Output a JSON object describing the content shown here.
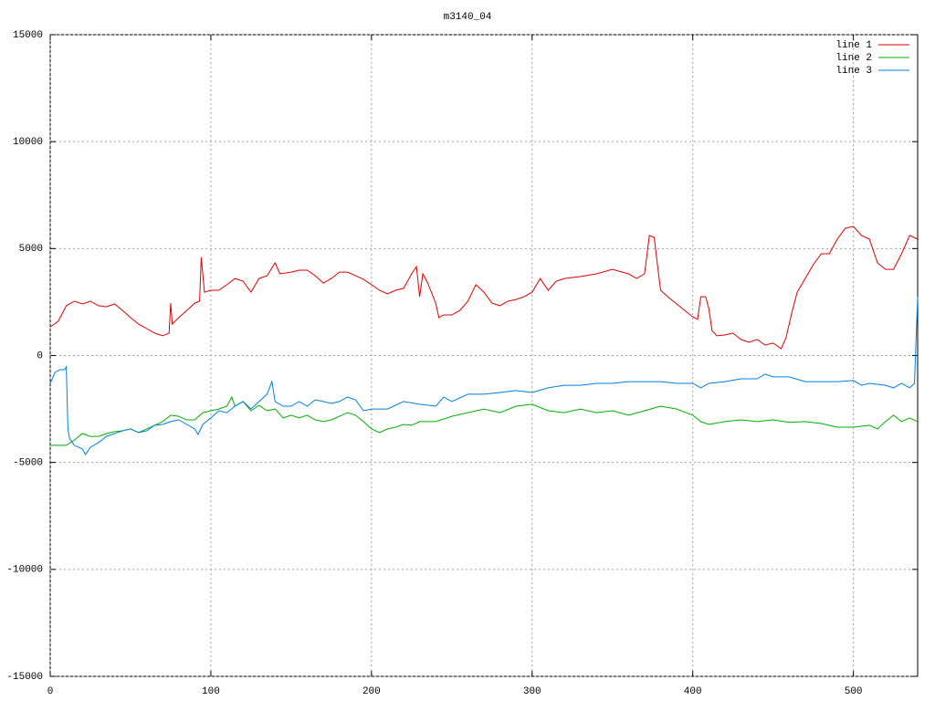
{
  "chart_data": {
    "type": "line",
    "title": "m3140_04",
    "xlim": [
      0,
      540
    ],
    "ylim": [
      -15000,
      15000
    ],
    "xticks": [
      0,
      100,
      200,
      300,
      400,
      500
    ],
    "yticks": [
      -15000,
      -10000,
      -5000,
      0,
      5000,
      10000,
      15000
    ],
    "grid": true,
    "legend": "top-right",
    "series": [
      {
        "name": "line 1",
        "color": "#e00000",
        "x": [
          0,
          5,
          10,
          15,
          20,
          25,
          30,
          35,
          40,
          45,
          50,
          55,
          60,
          65,
          70,
          74,
          75,
          76,
          80,
          85,
          90,
          93,
          94,
          96,
          100,
          105,
          110,
          115,
          120,
          125,
          130,
          135,
          140,
          143,
          150,
          155,
          160,
          165,
          170,
          175,
          180,
          185,
          190,
          195,
          200,
          205,
          210,
          215,
          220,
          225,
          228,
          230,
          232,
          235,
          240,
          242,
          245,
          250,
          255,
          260,
          265,
          270,
          275,
          280,
          285,
          290,
          295,
          300,
          305,
          310,
          315,
          320,
          330,
          340,
          350,
          360,
          365,
          370,
          373,
          376,
          378,
          380,
          385,
          390,
          395,
          400,
          403,
          405,
          408,
          410,
          412,
          415,
          420,
          425,
          430,
          435,
          440,
          445,
          450,
          455,
          458,
          462,
          465,
          470,
          475,
          480,
          485,
          490,
          495,
          500,
          505,
          510,
          515,
          520,
          525,
          530,
          535,
          540
        ],
        "values": [
          1340,
          1600,
          2330,
          2540,
          2410,
          2540,
          2330,
          2280,
          2410,
          2110,
          1770,
          1470,
          1260,
          1050,
          920,
          1050,
          2450,
          1470,
          1770,
          2110,
          2450,
          2540,
          4590,
          2960,
          3050,
          3050,
          3310,
          3600,
          3480,
          2960,
          3600,
          3730,
          4330,
          3820,
          3900,
          3990,
          3990,
          3730,
          3390,
          3600,
          3900,
          3900,
          3730,
          3560,
          3310,
          3050,
          2880,
          3050,
          3140,
          3820,
          4160,
          2750,
          3820,
          3390,
          2450,
          1770,
          1900,
          1900,
          2110,
          2540,
          3310,
          2960,
          2450,
          2330,
          2540,
          2620,
          2750,
          2960,
          3600,
          3050,
          3480,
          3600,
          3690,
          3820,
          4030,
          3820,
          3600,
          3820,
          5610,
          5520,
          4240,
          3050,
          2710,
          2410,
          2110,
          1810,
          1690,
          2750,
          2750,
          2200,
          1170,
          920,
          960,
          1050,
          750,
          620,
          750,
          490,
          580,
          320,
          810,
          2110,
          2960,
          3600,
          4240,
          4760,
          4760,
          5440,
          5950,
          6040,
          5610,
          5440,
          4330,
          4030,
          4030,
          4760,
          5610,
          5440
        ]
      },
      {
        "name": "line 2",
        "color": "#00b000",
        "x": [
          0,
          5,
          10,
          15,
          20,
          25,
          30,
          35,
          40,
          45,
          50,
          55,
          60,
          65,
          70,
          75,
          80,
          85,
          90,
          95,
          100,
          105,
          110,
          113,
          115,
          120,
          125,
          130,
          135,
          140,
          145,
          150,
          155,
          160,
          165,
          170,
          175,
          180,
          185,
          190,
          195,
          200,
          205,
          210,
          215,
          220,
          225,
          230,
          240,
          250,
          260,
          270,
          280,
          290,
          300,
          310,
          320,
          330,
          340,
          350,
          360,
          370,
          380,
          390,
          400,
          405,
          410,
          420,
          430,
          440,
          450,
          460,
          470,
          480,
          490,
          500,
          510,
          515,
          520,
          525,
          530,
          535,
          540
        ],
        "values": [
          -4200,
          -4200,
          -4200,
          -3950,
          -3650,
          -3780,
          -3780,
          -3650,
          -3560,
          -3520,
          -3430,
          -3600,
          -3430,
          -3260,
          -3090,
          -2790,
          -2840,
          -3010,
          -3010,
          -2670,
          -2580,
          -2500,
          -2370,
          -1940,
          -2370,
          -2150,
          -2580,
          -2330,
          -2580,
          -2500,
          -2920,
          -2790,
          -2920,
          -2790,
          -3010,
          -3090,
          -3010,
          -2840,
          -2670,
          -2790,
          -3090,
          -3430,
          -3600,
          -3430,
          -3350,
          -3220,
          -3260,
          -3090,
          -3090,
          -2840,
          -2670,
          -2500,
          -2670,
          -2370,
          -2280,
          -2580,
          -2670,
          -2500,
          -2670,
          -2580,
          -2790,
          -2580,
          -2370,
          -2500,
          -2790,
          -3090,
          -3220,
          -3090,
          -3010,
          -3090,
          -3010,
          -3130,
          -3090,
          -3180,
          -3350,
          -3350,
          -3260,
          -3430,
          -3090,
          -2790,
          -3090,
          -2920,
          -3090
        ]
      },
      {
        "name": "line 3",
        "color": "#0080e0",
        "x": [
          0,
          3,
          6,
          9,
          10,
          11,
          12,
          15,
          20,
          22,
          25,
          30,
          35,
          40,
          45,
          50,
          55,
          60,
          65,
          70,
          75,
          80,
          85,
          90,
          92,
          95,
          100,
          105,
          110,
          115,
          120,
          125,
          130,
          135,
          138,
          140,
          145,
          150,
          155,
          160,
          165,
          170,
          175,
          180,
          185,
          190,
          195,
          200,
          210,
          220,
          230,
          240,
          245,
          250,
          260,
          270,
          280,
          290,
          300,
          310,
          320,
          330,
          340,
          350,
          360,
          370,
          380,
          390,
          400,
          405,
          410,
          420,
          430,
          440,
          445,
          450,
          460,
          470,
          480,
          490,
          500,
          505,
          510,
          520,
          525,
          530,
          535,
          538,
          540
        ],
        "values": [
          -1300,
          -790,
          -660,
          -660,
          -530,
          -3430,
          -3860,
          -4200,
          -4370,
          -4630,
          -4290,
          -4070,
          -3780,
          -3650,
          -3520,
          -3430,
          -3600,
          -3520,
          -3260,
          -3220,
          -3090,
          -3010,
          -3220,
          -3430,
          -3690,
          -3220,
          -2920,
          -2580,
          -2670,
          -2370,
          -2150,
          -2500,
          -2150,
          -1810,
          -1220,
          -2150,
          -2370,
          -2370,
          -2150,
          -2370,
          -2070,
          -2150,
          -2240,
          -2150,
          -1940,
          -2070,
          -2580,
          -2500,
          -2500,
          -2150,
          -2280,
          -2370,
          -1940,
          -2150,
          -1810,
          -1810,
          -1730,
          -1640,
          -1730,
          -1510,
          -1390,
          -1390,
          -1300,
          -1300,
          -1220,
          -1220,
          -1220,
          -1300,
          -1300,
          -1510,
          -1300,
          -1220,
          -1090,
          -1090,
          -870,
          -1000,
          -1000,
          -1220,
          -1220,
          -1220,
          -1170,
          -1390,
          -1300,
          -1390,
          -1510,
          -1300,
          -1510,
          -1300,
          2750
        ]
      }
    ]
  }
}
